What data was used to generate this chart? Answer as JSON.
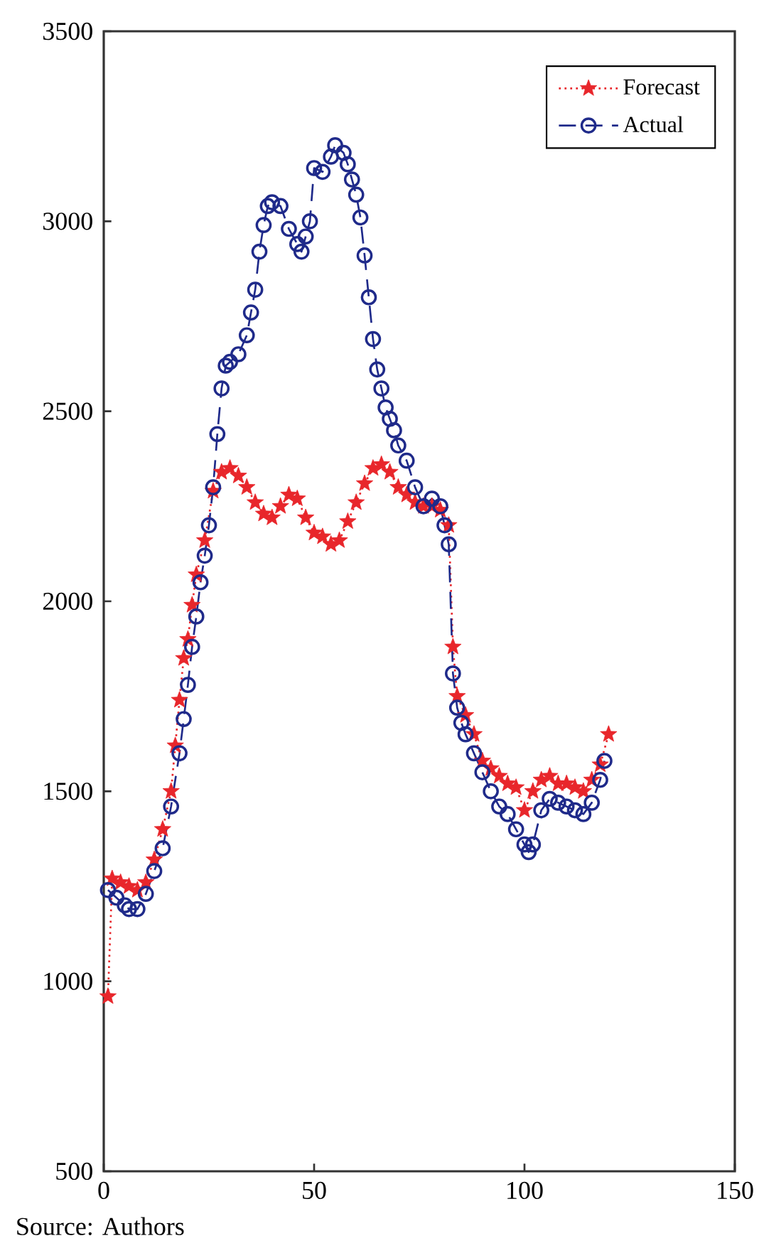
{
  "chart_data": {
    "type": "line",
    "xlim": [
      0,
      150
    ],
    "xticks": [
      0,
      50,
      100,
      150
    ],
    "ylim": [
      500,
      3500
    ],
    "yticks": [
      500,
      1000,
      1500,
      2000,
      2500,
      3000,
      3500
    ],
    "legend": "top right",
    "annotations": [
      "Source: Authors"
    ],
    "series": [
      {
        "name": "Forecast",
        "color": "#e8262b",
        "marker": "star",
        "line_style": "dotted",
        "x": [
          1,
          2,
          4,
          6,
          8,
          10,
          12,
          14,
          16,
          17,
          18,
          19,
          20,
          21,
          22,
          24,
          26,
          28,
          30,
          32,
          34,
          36,
          38,
          40,
          42,
          44,
          46,
          48,
          50,
          52,
          54,
          56,
          58,
          60,
          62,
          64,
          66,
          68,
          70,
          72,
          74,
          76,
          78,
          80,
          82,
          83,
          84,
          86,
          88,
          90,
          92,
          94,
          96,
          98,
          100,
          102,
          104,
          106,
          108,
          110,
          112,
          114,
          116,
          118,
          120
        ],
        "values": [
          960,
          1270,
          1260,
          1250,
          1240,
          1260,
          1320,
          1400,
          1500,
          1620,
          1740,
          1850,
          1900,
          1990,
          2070,
          2160,
          2290,
          2340,
          2350,
          2330,
          2300,
          2260,
          2230,
          2220,
          2250,
          2280,
          2270,
          2220,
          2180,
          2170,
          2150,
          2160,
          2210,
          2260,
          2310,
          2350,
          2360,
          2340,
          2300,
          2280,
          2260,
          2250,
          2250,
          2240,
          2200,
          1880,
          1750,
          1700,
          1650,
          1580,
          1560,
          1540,
          1520,
          1510,
          1450,
          1500,
          1530,
          1540,
          1520,
          1520,
          1510,
          1500,
          1530,
          1570,
          1650
        ]
      },
      {
        "name": "Actual",
        "color": "#1f2a8a",
        "marker": "circle",
        "line_style": "dashed",
        "x": [
          1,
          3,
          5,
          6,
          8,
          10,
          12,
          14,
          16,
          18,
          19,
          20,
          21,
          22,
          23,
          24,
          25,
          26,
          27,
          28,
          29,
          30,
          32,
          34,
          35,
          36,
          37,
          38,
          39,
          40,
          42,
          44,
          46,
          47,
          48,
          49,
          50,
          52,
          54,
          55,
          57,
          58,
          59,
          60,
          61,
          62,
          63,
          64,
          65,
          66,
          67,
          68,
          69,
          70,
          72,
          74,
          76,
          78,
          80,
          81,
          82,
          83,
          84,
          85,
          86,
          88,
          90,
          92,
          94,
          96,
          98,
          100,
          101,
          102,
          104,
          106,
          108,
          110,
          112,
          114,
          116,
          118,
          119
        ],
        "values": [
          1240,
          1220,
          1200,
          1190,
          1190,
          1230,
          1290,
          1350,
          1460,
          1600,
          1690,
          1780,
          1880,
          1960,
          2050,
          2120,
          2200,
          2300,
          2440,
          2560,
          2620,
          2630,
          2650,
          2700,
          2760,
          2820,
          2920,
          2990,
          3040,
          3050,
          3040,
          2980,
          2940,
          2920,
          2960,
          3000,
          3140,
          3130,
          3170,
          3200,
          3180,
          3150,
          3110,
          3070,
          3010,
          2910,
          2800,
          2690,
          2610,
          2560,
          2510,
          2480,
          2450,
          2410,
          2370,
          2300,
          2250,
          2270,
          2250,
          2200,
          2150,
          1810,
          1720,
          1680,
          1650,
          1600,
          1550,
          1500,
          1460,
          1440,
          1400,
          1360,
          1340,
          1360,
          1450,
          1480,
          1470,
          1460,
          1450,
          1440,
          1470,
          1530,
          1580
        ]
      }
    ]
  }
}
